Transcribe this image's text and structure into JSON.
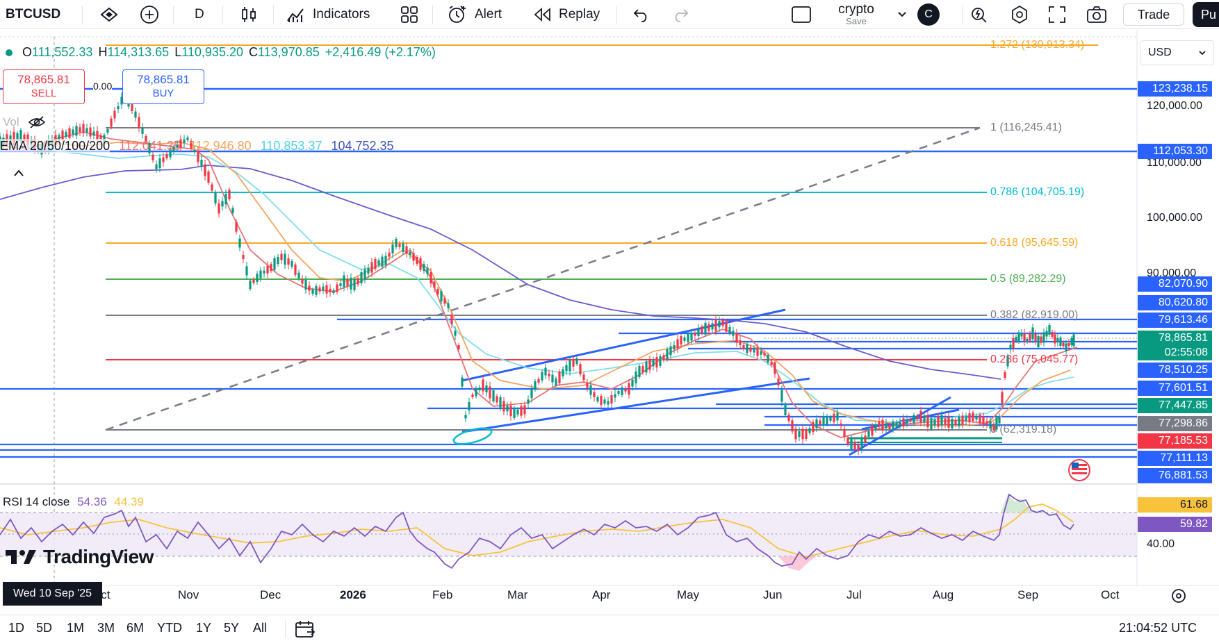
{
  "toolbar": {
    "symbol": "BTCUSD",
    "interval": "D",
    "indicators_label": "Indicators",
    "alert_label": "Alert",
    "replay_label": "Replay",
    "layout_name": "crypto",
    "layout_save": "Save",
    "avatar_letter": "C",
    "trade_label": "Trade",
    "publish_label": "Pu"
  },
  "ohlc": {
    "open_label": "O",
    "open": "111,552.33",
    "high_label": "H",
    "high": "114,313.65",
    "low_label": "L",
    "low": "110,935.20",
    "close_label": "C",
    "close": "113,970.85",
    "change": "+2,416.49 (+2.17%)"
  },
  "trade_buttons": {
    "sell_price": "78,865.81",
    "sell_label": "SELL",
    "spread": "0.00",
    "buy_price": "78,865.81",
    "buy_label": "BUY"
  },
  "vol_label": "Vol",
  "ema": {
    "label": "EMA 20/50/100/200",
    "v20": "112,041.35",
    "v50": "112,946.80",
    "v100": "110,853.37",
    "v200": "104,752.35"
  },
  "currency": "USD",
  "fib_levels": [
    {
      "label": "1.272 (130,913.34)",
      "color": "#f9a825"
    },
    {
      "label": "1 (116,245.41)",
      "color": "#787b86"
    },
    {
      "label": "0.786 (104,705.19)",
      "color": "#00bcd4"
    },
    {
      "label": "0.618 (95,645.59)",
      "color": "#f9a825"
    },
    {
      "label": "0.5 (89,282.29)",
      "color": "#4caf50"
    },
    {
      "label": "0.382 (82,919.00)",
      "color": "#787b86"
    },
    {
      "label": "0.236 (75,045.77)",
      "color": "#f23645"
    },
    {
      "label": "0 (62,319.18)",
      "color": "#787b86"
    }
  ],
  "price_axis": [
    "120,000.00",
    "110,000.00",
    "100,000.00",
    "90,000.00"
  ],
  "price_tags": [
    {
      "value": "123,238.15",
      "color": "#2962ff"
    },
    {
      "value": "112,053.30",
      "color": "#2962ff"
    },
    {
      "value": "82,070.90",
      "color": "#2962ff"
    },
    {
      "value": "80,620.80",
      "color": "#2962ff"
    },
    {
      "value": "79,613.46",
      "color": "#2962ff"
    },
    {
      "value": "78,865.81",
      "color": "#089981"
    },
    {
      "value": "02:55:08",
      "color": "#089981"
    },
    {
      "value": "78,510.25",
      "color": "#2962ff"
    },
    {
      "value": "77,601.51",
      "color": "#2962ff"
    },
    {
      "value": "77,447.85",
      "color": "#089981"
    },
    {
      "value": "77,298.86",
      "color": "#787b86"
    },
    {
      "value": "77,185.53",
      "color": "#f23645"
    },
    {
      "value": "77,111.13",
      "color": "#2962ff"
    },
    {
      "value": "76,881.53",
      "color": "#2962ff"
    }
  ],
  "rsi": {
    "label": "RSI 14 close",
    "value": "54.36",
    "ma": "44.39",
    "tag_ma": "61.68",
    "tag_rsi": "59.82",
    "level_40": "40.00"
  },
  "time_axis": [
    "Oct",
    "Nov",
    "Dec",
    "2026",
    "Feb",
    "Mar",
    "Apr",
    "May",
    "Jun",
    "Jul",
    "Aug",
    "Sep",
    "Oct"
  ],
  "crosshair_date": "Wed 10 Sep '25",
  "logo_text": "TradingView",
  "ranges": [
    "1D",
    "5D",
    "1M",
    "3M",
    "6M",
    "YTD",
    "1Y",
    "5Y",
    "All"
  ],
  "clock": "21:04:52 UTC"
}
